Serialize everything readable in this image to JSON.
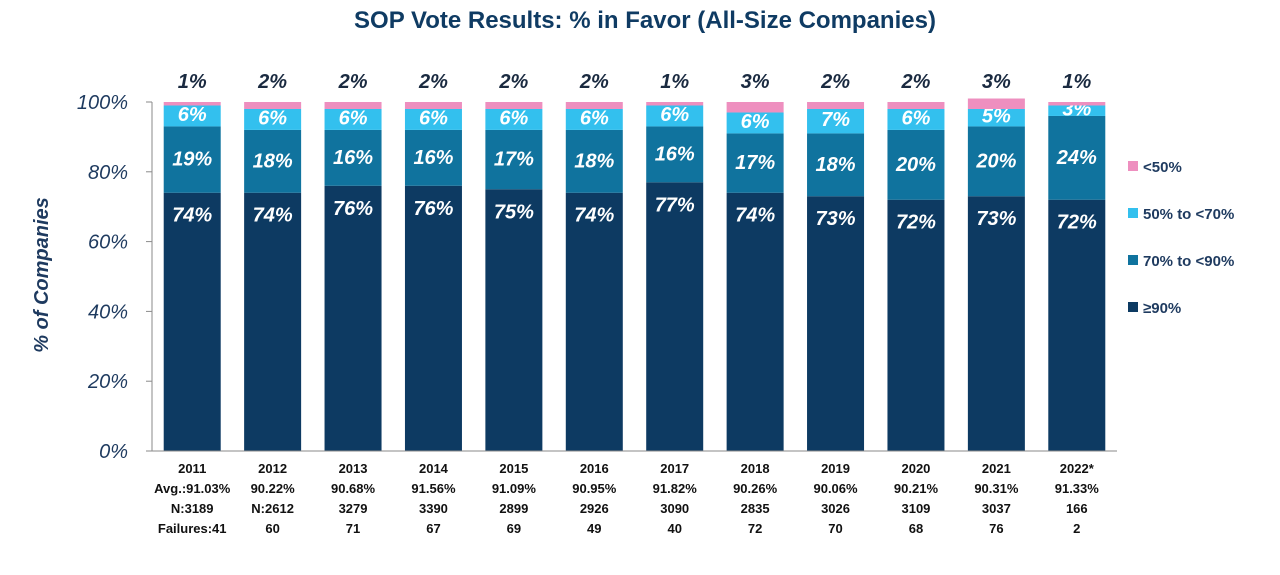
{
  "chart_data": {
    "type": "bar",
    "stacked": true,
    "title": "SOP Vote Results: % in Favor (All-Size Companies)",
    "ylabel": "% of Companies",
    "ylim": [
      0,
      100
    ],
    "yticks": [
      "0%",
      "20%",
      "40%",
      "60%",
      "80%",
      "100%"
    ],
    "categories": [
      "2011",
      "2012",
      "2013",
      "2014",
      "2015",
      "2016",
      "2017",
      "2018",
      "2019",
      "2020",
      "2021",
      "2022*"
    ],
    "category_details": [
      [
        "2011",
        "Avg.:91.03%",
        "N:3189",
        "Failures:41"
      ],
      [
        "2012",
        "90.22%",
        "N:2612",
        "60"
      ],
      [
        "2013",
        "90.68%",
        "3279",
        "71"
      ],
      [
        "2014",
        "91.56%",
        "3390",
        "67"
      ],
      [
        "2015",
        "91.09%",
        "2899",
        "69"
      ],
      [
        "2016",
        "90.95%",
        "2926",
        "49"
      ],
      [
        "2017",
        "91.82%",
        "3090",
        "40"
      ],
      [
        "2018",
        "90.26%",
        "2835",
        "72"
      ],
      [
        "2019",
        "90.06%",
        "3026",
        "70"
      ],
      [
        "2020",
        "90.21%",
        "3109",
        "68"
      ],
      [
        "2021",
        "90.31%",
        "3037",
        "76"
      ],
      [
        "2022*",
        "91.33%",
        "166",
        "2"
      ]
    ],
    "series": [
      {
        "name": "≥90%",
        "color": "#0d3a62",
        "values": [
          74,
          74,
          76,
          76,
          75,
          74,
          77,
          74,
          73,
          72,
          73,
          72
        ]
      },
      {
        "name": "70% to <90%",
        "color": "#10739e",
        "values": [
          19,
          18,
          16,
          16,
          17,
          18,
          16,
          17,
          18,
          20,
          20,
          24
        ]
      },
      {
        "name": "50% to <70%",
        "color": "#33c0ee",
        "values": [
          6,
          6,
          6,
          6,
          6,
          6,
          6,
          6,
          7,
          6,
          5,
          3
        ]
      },
      {
        "name": "<50%",
        "color": "#ee8fbf",
        "values": [
          1,
          2,
          2,
          2,
          2,
          2,
          1,
          3,
          2,
          2,
          3,
          1
        ]
      }
    ],
    "legend_order": [
      "<50%",
      "50% to <70%",
      "70% to <90%",
      "≥90%"
    ],
    "legend_position": "right",
    "grid": false
  }
}
